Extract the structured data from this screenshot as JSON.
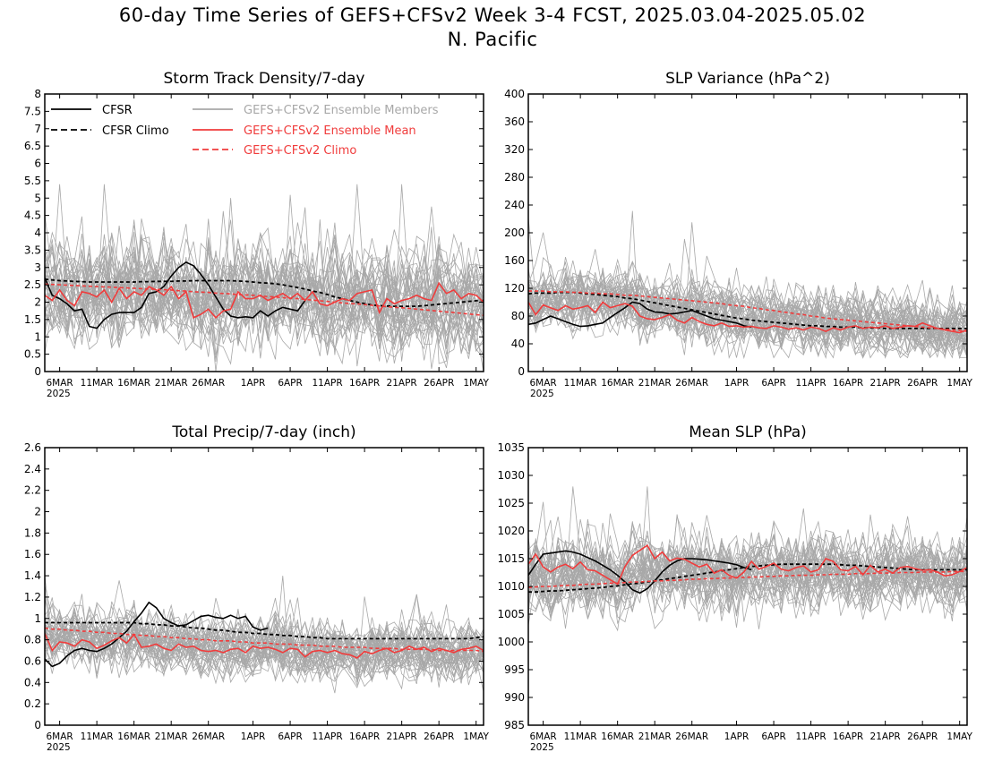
{
  "title": "60-day Time Series of GEFS+CFSv2 Week 3-4 FCST, 2025.03.04-2025.05.02",
  "subtitle": "N. Pacific",
  "colors": {
    "cfsr": "#000000",
    "member": "#a8a8a8",
    "mean": "#f03c3c",
    "climo_gefs": "#f03c3c"
  },
  "legend": {
    "cfsr": "CFSR",
    "cfsr_climo": "CFSR Climo",
    "members": "GEFS+CFSv2 Ensemble Members",
    "mean": "GEFS+CFSv2 Ensemble Mean",
    "gefs_climo": "GEFS+CFSv2 Climo"
  },
  "x_ticks": [
    "6MAR",
    "11MAR",
    "16MAR",
    "21MAR",
    "26MAR",
    "1APR",
    "6APR",
    "11APR",
    "16APR",
    "21APR",
    "26APR",
    "1MAY"
  ],
  "x_year_label": "2025",
  "chart_data": [
    {
      "type": "line",
      "title": "Storm Track Density/7-day",
      "x_start": "2025-03-04",
      "ylim": [
        0,
        8
      ],
      "yticks": [
        "0",
        "0.5",
        "1",
        "1.5",
        "2",
        "2.5",
        "3",
        "3.5",
        "4",
        "4.5",
        "5",
        "5.5",
        "6",
        "6.5",
        "7",
        "7.5",
        "8"
      ],
      "legend_placement": "top-left",
      "member_band": {
        "center": 2.2,
        "spread": 0.9,
        "max": 5.4,
        "min": 0
      },
      "series": [
        {
          "name": "CFSR",
          "style": "solid-black",
          "values": [
            2.7,
            2.2,
            2.1,
            1.95,
            1.75,
            1.8,
            1.3,
            1.25,
            1.5,
            1.65,
            1.7,
            1.7,
            1.7,
            1.85,
            2.25,
            2.3,
            2.45,
            2.75,
            3.0,
            3.15,
            3.05,
            2.8,
            2.5,
            2.15,
            1.8,
            1.6,
            1.55,
            1.58,
            1.55,
            1.75,
            1.6,
            1.75,
            1.85,
            1.8,
            1.75,
            2.05
          ]
        },
        {
          "name": "CFSR Climo",
          "style": "dashed-black",
          "values": [
            2.66,
            2.64,
            2.62,
            2.61,
            2.6,
            2.59,
            2.58,
            2.58,
            2.58,
            2.58,
            2.58,
            2.58,
            2.58,
            2.59,
            2.59,
            2.6,
            2.6,
            2.6,
            2.61,
            2.61,
            2.62,
            2.62,
            2.62,
            2.62,
            2.62,
            2.62,
            2.61,
            2.6,
            2.58,
            2.56,
            2.55,
            2.53,
            2.5,
            2.46,
            2.42,
            2.38,
            2.32,
            2.28,
            2.22,
            2.15,
            2.1,
            2.05,
            2.0,
            1.96,
            1.92,
            1.9,
            1.89,
            1.88,
            1.88,
            1.88,
            1.88,
            1.9,
            1.92,
            1.94,
            1.96,
            1.98,
            2.0,
            2.02,
            2.04,
            2.05
          ]
        },
        {
          "name": "GEFS+CFSv2 Ensemble Mean",
          "style": "solid-red",
          "values": [
            2.2,
            2.05,
            2.35,
            2.05,
            1.9,
            2.3,
            2.25,
            2.15,
            2.35,
            2.0,
            2.4,
            2.1,
            2.3,
            2.2,
            2.45,
            2.35,
            2.2,
            2.45,
            2.1,
            2.3,
            1.55,
            1.65,
            1.8,
            1.55,
            1.75,
            1.8,
            2.3,
            2.1,
            2.1,
            2.2,
            2.05,
            2.15,
            2.25,
            2.1,
            2.25,
            2.05,
            2.3,
            1.95,
            1.9,
            2.0,
            2.1,
            2.05,
            2.25,
            2.3,
            2.35,
            1.7,
            2.1,
            1.95,
            2.05,
            2.1,
            2.2,
            2.1,
            2.05,
            2.55,
            2.25,
            2.35,
            2.1,
            2.25,
            2.2,
            2.0
          ]
        },
        {
          "name": "GEFS+CFSv2 Climo",
          "style": "dashed-red",
          "values": [
            2.52,
            2.51,
            2.5,
            2.49,
            2.48,
            2.47,
            2.46,
            2.45,
            2.44,
            2.43,
            2.42,
            2.41,
            2.4,
            2.39,
            2.38,
            2.37,
            2.36,
            2.35,
            2.33,
            2.32,
            2.3,
            2.29,
            2.28,
            2.26,
            2.25,
            2.24,
            2.22,
            2.21,
            2.2,
            2.18,
            2.16,
            2.15,
            2.13,
            2.11,
            2.1,
            2.08,
            2.06,
            2.04,
            2.02,
            2.0,
            1.98,
            1.96,
            1.95,
            1.93,
            1.91,
            1.89,
            1.87,
            1.85,
            1.84,
            1.82,
            1.8,
            1.78,
            1.76,
            1.74,
            1.72,
            1.7,
            1.68,
            1.66,
            1.64,
            1.62
          ]
        }
      ]
    },
    {
      "type": "line",
      "title": "SLP Variance (hPa^2)",
      "x_start": "2025-03-04",
      "ylim": [
        0,
        400
      ],
      "yticks": [
        "0",
        "40",
        "80",
        "120",
        "160",
        "200",
        "240",
        "280",
        "320",
        "360",
        "400"
      ],
      "member_band": {
        "center": 85,
        "spread": 28,
        "max": 260,
        "min": 20
      },
      "series": [
        {
          "name": "CFSR",
          "style": "solid-black",
          "values": [
            68,
            70,
            75,
            80,
            76,
            72,
            68,
            65,
            66,
            68,
            70,
            78,
            85,
            92,
            100,
            98,
            90,
            86,
            85,
            83,
            84,
            86,
            88,
            84,
            80,
            76,
            74,
            72,
            70,
            66,
            64
          ]
        },
        {
          "name": "CFSR Climo",
          "style": "dashed-black",
          "values": [
            112,
            113,
            113,
            113,
            114,
            114,
            114,
            113,
            112,
            111,
            110,
            109,
            108,
            106,
            105,
            103,
            101,
            99,
            97,
            95,
            93,
            91,
            89,
            87,
            85,
            83,
            81,
            79,
            77,
            76,
            74,
            73,
            72,
            71,
            70,
            69,
            68,
            67,
            66,
            66,
            65,
            65,
            64,
            64,
            64,
            63,
            63,
            63,
            62,
            62,
            62,
            62,
            62,
            62,
            62,
            62,
            62,
            62,
            62,
            62
          ]
        },
        {
          "name": "GEFS+CFSv2 Ensemble Mean",
          "style": "solid-red",
          "values": [
            100,
            82,
            96,
            92,
            88,
            95,
            90,
            92,
            95,
            85,
            100,
            92,
            95,
            98,
            94,
            80,
            76,
            75,
            78,
            82,
            74,
            70,
            78,
            72,
            68,
            66,
            70,
            65,
            66,
            64,
            65,
            63,
            62,
            66,
            64,
            61,
            63,
            60,
            64,
            62,
            58,
            63,
            60,
            64,
            66,
            62,
            64,
            63,
            66,
            62,
            64,
            66,
            65,
            70,
            66,
            62,
            60,
            58,
            56,
            60
          ]
        },
        {
          "name": "GEFS+CFSv2 Climo",
          "style": "dashed-red",
          "values": [
            116,
            116,
            116,
            115,
            115,
            115,
            114,
            114,
            113,
            113,
            112,
            112,
            111,
            110,
            110,
            109,
            108,
            107,
            106,
            105,
            104,
            103,
            102,
            101,
            100,
            99,
            98,
            96,
            95,
            94,
            92,
            91,
            89,
            88,
            86,
            85,
            83,
            82,
            80,
            79,
            77,
            76,
            75,
            74,
            73,
            72,
            71,
            70,
            69,
            68,
            67,
            66,
            65,
            64,
            63,
            62,
            61,
            60,
            59,
            58
          ]
        }
      ]
    },
    {
      "type": "line",
      "title": "Total Precip/7-day (inch)",
      "x_start": "2025-03-04",
      "ylim": [
        0,
        2.6
      ],
      "yticks": [
        "0",
        "0.2",
        "0.4",
        "0.6",
        "0.8",
        "1",
        "1.2",
        "1.4",
        "1.6",
        "1.8",
        "2",
        "2.2",
        "2.4",
        "2.6"
      ],
      "member_band": {
        "center": 0.75,
        "spread": 0.17,
        "max": 1.4,
        "min": 0.3
      },
      "series": [
        {
          "name": "CFSR",
          "style": "solid-black",
          "values": [
            0.62,
            0.55,
            0.58,
            0.65,
            0.7,
            0.72,
            0.7,
            0.69,
            0.72,
            0.76,
            0.82,
            0.88,
            0.97,
            1.05,
            1.15,
            1.1,
            1.0,
            0.96,
            0.93,
            0.94,
            0.98,
            1.02,
            1.03,
            1.01,
            1.0,
            1.03,
            1.0,
            1.02,
            0.92,
            0.89,
            0.91
          ]
        },
        {
          "name": "CFSR Climo",
          "style": "dashed-black",
          "values": [
            0.96,
            0.96,
            0.96,
            0.96,
            0.96,
            0.96,
            0.96,
            0.96,
            0.96,
            0.96,
            0.96,
            0.96,
            0.96,
            0.95,
            0.95,
            0.94,
            0.94,
            0.93,
            0.93,
            0.92,
            0.91,
            0.91,
            0.9,
            0.89,
            0.89,
            0.88,
            0.87,
            0.87,
            0.86,
            0.86,
            0.85,
            0.85,
            0.84,
            0.84,
            0.83,
            0.83,
            0.82,
            0.82,
            0.81,
            0.81,
            0.81,
            0.81,
            0.81,
            0.81,
            0.81,
            0.81,
            0.81,
            0.81,
            0.81,
            0.81,
            0.81,
            0.81,
            0.81,
            0.81,
            0.81,
            0.81,
            0.81,
            0.81,
            0.82,
            0.83
          ]
        },
        {
          "name": "GEFS+CFSv2 Ensemble Mean",
          "style": "solid-red",
          "values": [
            0.86,
            0.7,
            0.78,
            0.77,
            0.74,
            0.8,
            0.78,
            0.72,
            0.75,
            0.79,
            0.82,
            0.77,
            0.85,
            0.73,
            0.74,
            0.76,
            0.72,
            0.7,
            0.76,
            0.73,
            0.74,
            0.7,
            0.69,
            0.7,
            0.68,
            0.71,
            0.72,
            0.68,
            0.74,
            0.72,
            0.73,
            0.71,
            0.68,
            0.72,
            0.71,
            0.64,
            0.69,
            0.7,
            0.68,
            0.7,
            0.67,
            0.66,
            0.63,
            0.69,
            0.67,
            0.7,
            0.72,
            0.68,
            0.7,
            0.74,
            0.71,
            0.73,
            0.69,
            0.72,
            0.7,
            0.68,
            0.71,
            0.72,
            0.74,
            0.7
          ]
        },
        {
          "name": "GEFS+CFSv2 Climo",
          "style": "dashed-red",
          "values": [
            0.91,
            0.9,
            0.9,
            0.89,
            0.89,
            0.88,
            0.88,
            0.87,
            0.87,
            0.86,
            0.86,
            0.85,
            0.85,
            0.84,
            0.84,
            0.83,
            0.83,
            0.82,
            0.82,
            0.81,
            0.81,
            0.8,
            0.8,
            0.79,
            0.79,
            0.79,
            0.78,
            0.78,
            0.77,
            0.77,
            0.77,
            0.76,
            0.76,
            0.76,
            0.75,
            0.75,
            0.75,
            0.74,
            0.74,
            0.74,
            0.73,
            0.73,
            0.73,
            0.73,
            0.72,
            0.72,
            0.72,
            0.72,
            0.71,
            0.71,
            0.71,
            0.71,
            0.71,
            0.7,
            0.7,
            0.7,
            0.7,
            0.7,
            0.7,
            0.69
          ]
        }
      ]
    },
    {
      "type": "line",
      "title": "Mean SLP (hPa)",
      "x_start": "2025-03-04",
      "ylim": [
        985,
        1035
      ],
      "yticks": [
        "985",
        "990",
        "995",
        "1000",
        "1005",
        "1010",
        "1015",
        "1020",
        "1025",
        "1030",
        "1035"
      ],
      "member_band": {
        "center": 1012,
        "spread": 4.2,
        "max": 1028,
        "min": 996
      },
      "series": [
        {
          "name": "CFSR",
          "style": "solid-black",
          "values": [
            1012,
            1014,
            1015.8,
            1016,
            1016.2,
            1016.4,
            1016.2,
            1015.8,
            1015.2,
            1014.6,
            1013.8,
            1013,
            1012,
            1010.8,
            1009.4,
            1008.8,
            1009.6,
            1011,
            1012.6,
            1013.8,
            1014.6,
            1015,
            1015,
            1014.9,
            1014.8,
            1014.6,
            1014.4,
            1014.2,
            1013.9,
            1013.4,
            1013.0
          ]
        },
        {
          "name": "CFSR Climo",
          "style": "dashed-black",
          "values": [
            1009,
            1009,
            1009.1,
            1009.2,
            1009.2,
            1009.3,
            1009.4,
            1009.5,
            1009.6,
            1009.7,
            1009.8,
            1010,
            1010.1,
            1010.3,
            1010.5,
            1010.6,
            1010.8,
            1011,
            1011.2,
            1011.4,
            1011.6,
            1011.8,
            1012,
            1012.2,
            1012.4,
            1012.6,
            1012.8,
            1013,
            1013.2,
            1013.4,
            1013.6,
            1013.7,
            1013.8,
            1013.9,
            1014,
            1014,
            1014,
            1014,
            1014,
            1014,
            1014,
            1014,
            1013.9,
            1013.8,
            1013.8,
            1013.7,
            1013.6,
            1013.5,
            1013.4,
            1013.3,
            1013.2,
            1013.1,
            1013,
            1013,
            1013,
            1013,
            1013,
            1013,
            1013,
            1013
          ]
        },
        {
          "name": "GEFS+CFSv2 Ensemble Mean",
          "style": "solid-red",
          "values": [
            1014,
            1015.8,
            1013.5,
            1012.6,
            1013.5,
            1014,
            1013.2,
            1014.4,
            1013,
            1012.8,
            1012,
            1011.2,
            1010.4,
            1013.6,
            1015.6,
            1016.5,
            1017.4,
            1015,
            1016.2,
            1014.6,
            1015.1,
            1014.9,
            1014.2,
            1013.5,
            1014,
            1012.4,
            1013,
            1012,
            1011.5,
            1012.6,
            1014.5,
            1013.1,
            1013.6,
            1014.2,
            1013.1,
            1012.8,
            1013.4,
            1013.7,
            1012.6,
            1013,
            1015,
            1014.5,
            1013,
            1012.8,
            1013.6,
            1012.1,
            1013.8,
            1012.6,
            1013.1,
            1012.4,
            1013.4,
            1013.6,
            1013.2,
            1012.9,
            1013,
            1012.6,
            1011.9,
            1012.1,
            1012.7,
            1013.4
          ]
        },
        {
          "name": "GEFS+CFSv2 Climo",
          "style": "dashed-red",
          "values": [
            1009.8,
            1009.9,
            1010,
            1010,
            1010.1,
            1010.2,
            1010.2,
            1010.3,
            1010.4,
            1010.4,
            1010.5,
            1010.6,
            1010.6,
            1010.7,
            1010.8,
            1010.8,
            1010.9,
            1011,
            1011,
            1011.1,
            1011.1,
            1011.2,
            1011.3,
            1011.3,
            1011.4,
            1011.4,
            1011.5,
            1011.5,
            1011.6,
            1011.6,
            1011.7,
            1011.7,
            1011.8,
            1011.8,
            1011.9,
            1011.9,
            1012,
            1012,
            1012,
            1012.1,
            1012.1,
            1012.2,
            1012.2,
            1012.2,
            1012.3,
            1012.3,
            1012.3,
            1012.4,
            1012.4,
            1012.4,
            1012.5,
            1012.5,
            1012.5,
            1012.6,
            1012.6,
            1012.6,
            1012.6,
            1012.7,
            1012.7,
            1012.7
          ]
        }
      ]
    }
  ]
}
